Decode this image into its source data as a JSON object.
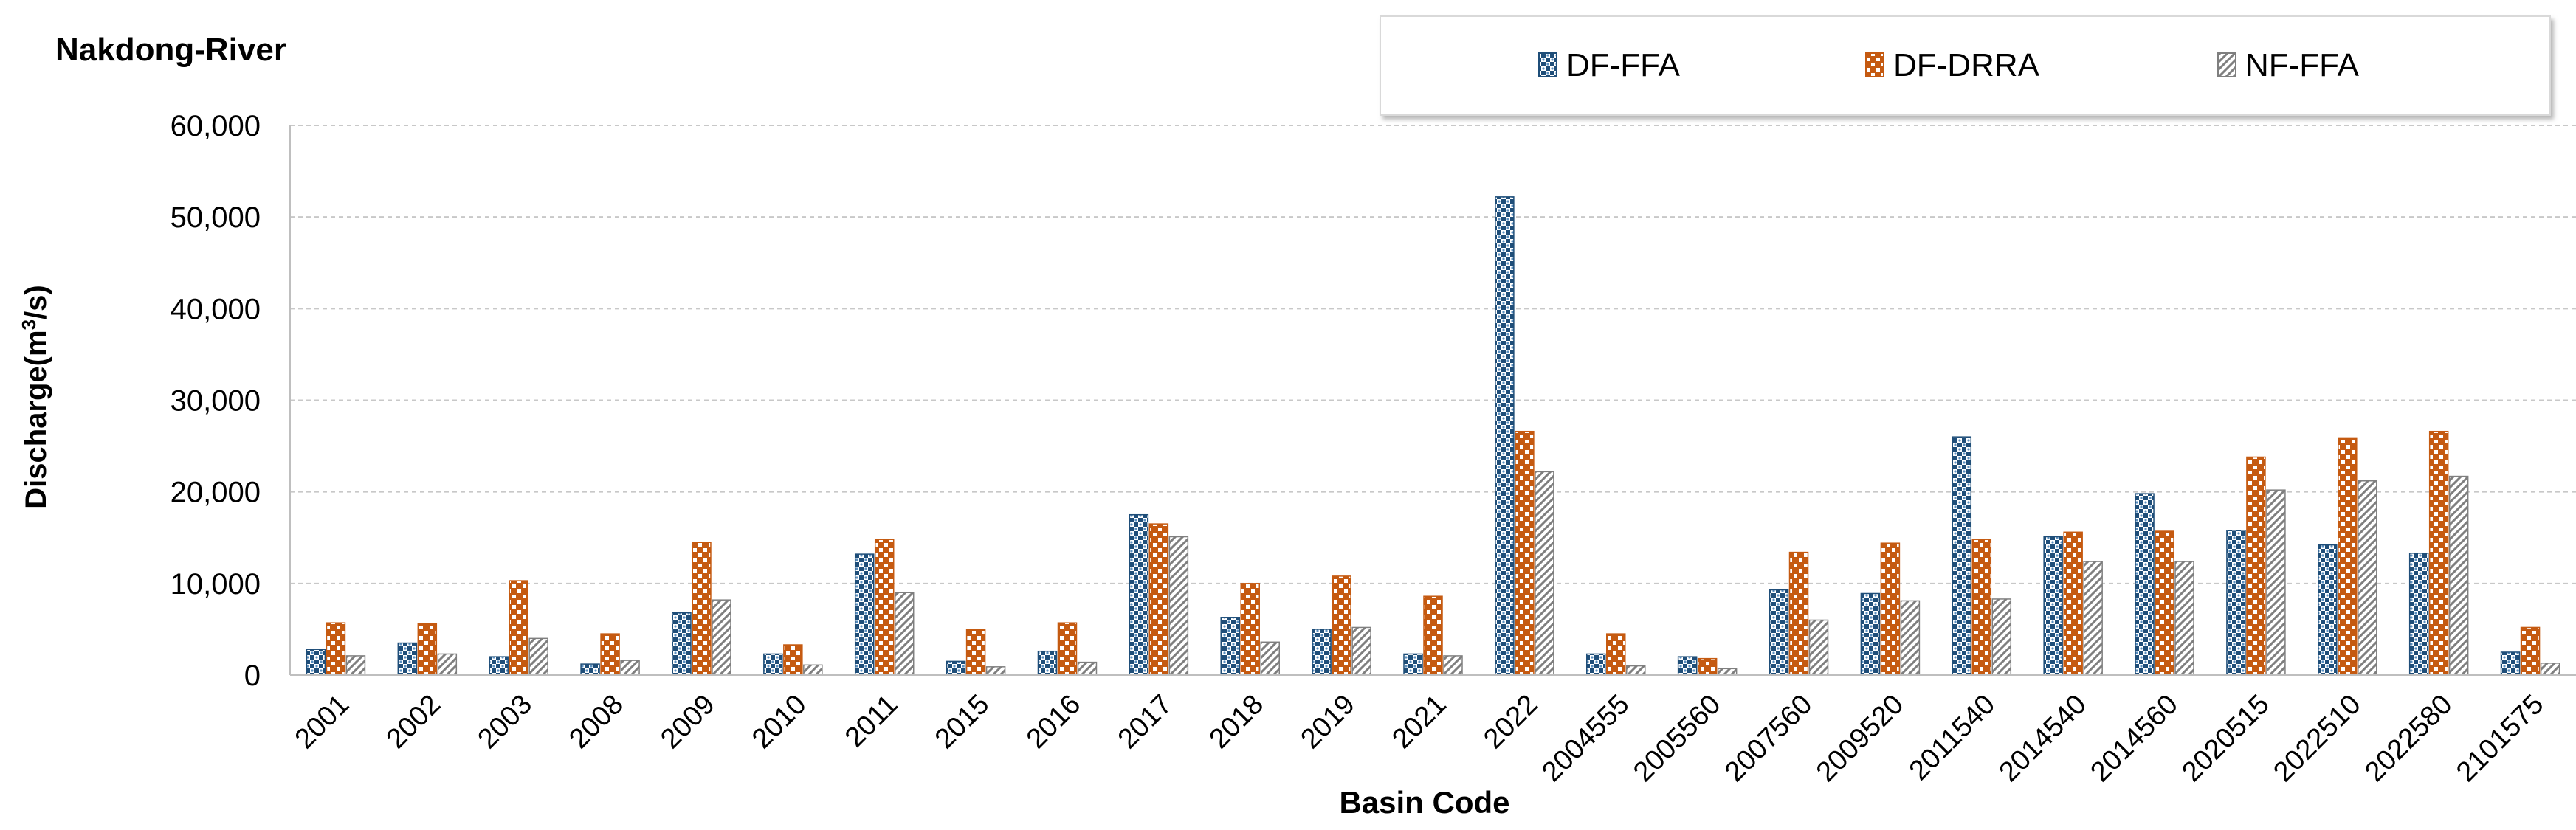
{
  "chart_data": {
    "type": "bar",
    "title": "Nakdong-River",
    "xlabel": "Basin Code",
    "ylabel": "Discharge(m³/s)",
    "ylabel_parts": {
      "main": "Discharge(m",
      "sup": "3",
      "tail": "/s)"
    },
    "ylim": [
      0,
      60000
    ],
    "yticks": [
      0,
      10000,
      20000,
      30000,
      40000,
      50000,
      60000
    ],
    "ytick_labels": [
      "0",
      "10,000",
      "20,000",
      "30,000",
      "40,000",
      "50,000",
      "60,000"
    ],
    "grid": true,
    "legend_position": "top-right",
    "categories": [
      "2001",
      "2002",
      "2003",
      "2008",
      "2009",
      "2010",
      "2011",
      "2015",
      "2016",
      "2017",
      "2018",
      "2019",
      "2021",
      "2022",
      "2004555",
      "2005560",
      "2007560",
      "2009520",
      "2011540",
      "2014540",
      "2014560",
      "2020515",
      "2022510",
      "2022580",
      "2101575"
    ],
    "series": [
      {
        "name": "DF-FFA",
        "color": "#1f4e79",
        "values": [
          2800,
          3500,
          2000,
          1200,
          6800,
          2300,
          13200,
          1500,
          2600,
          17500,
          6300,
          5000,
          2300,
          52200,
          2300,
          2000,
          9300,
          8900,
          26000,
          15100,
          19800,
          15800,
          14200,
          13300,
          2500
        ]
      },
      {
        "name": "DF-DRRA",
        "color": "#c55a11",
        "values": [
          5700,
          5600,
          10300,
          4500,
          14500,
          3300,
          14800,
          5000,
          5700,
          16500,
          10000,
          10800,
          8600,
          26600,
          4500,
          1800,
          13400,
          14400,
          14800,
          15600,
          15700,
          23800,
          25900,
          26600,
          5200
        ]
      },
      {
        "name": "NF-FFA",
        "color": "#7f7f7f",
        "values": [
          2100,
          2300,
          4000,
          1600,
          8200,
          1100,
          9000,
          900,
          1400,
          15100,
          3600,
          5200,
          2100,
          22200,
          1000,
          700,
          6000,
          8100,
          8300,
          12400,
          12400,
          20200,
          21200,
          21700,
          1300
        ]
      }
    ]
  }
}
